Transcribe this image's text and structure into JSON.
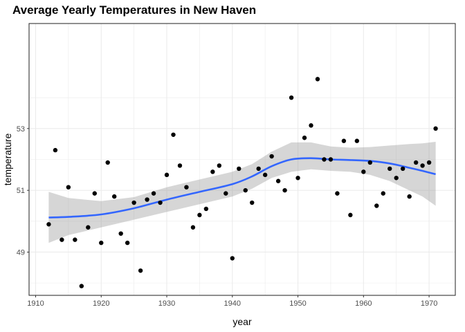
{
  "chart_data": {
    "type": "scatter",
    "title": "Average Yearly Temperatures in New Haven",
    "xlabel": "year",
    "ylabel": "temperature",
    "xlim": [
      1909,
      1974
    ],
    "ylim": [
      47.6,
      56.4
    ],
    "x_ticks": [
      1910,
      1920,
      1930,
      1940,
      1950,
      1960,
      1970
    ],
    "y_ticks": [
      49,
      51,
      53
    ],
    "grid": true,
    "points": [
      {
        "x": 1912,
        "y": 49.9
      },
      {
        "x": 1913,
        "y": 52.3
      },
      {
        "x": 1914,
        "y": 49.4
      },
      {
        "x": 1915,
        "y": 51.1
      },
      {
        "x": 1916,
        "y": 49.4
      },
      {
        "x": 1917,
        "y": 47.9
      },
      {
        "x": 1918,
        "y": 49.8
      },
      {
        "x": 1919,
        "y": 50.9
      },
      {
        "x": 1920,
        "y": 49.3
      },
      {
        "x": 1921,
        "y": 51.9
      },
      {
        "x": 1922,
        "y": 50.8
      },
      {
        "x": 1923,
        "y": 49.6
      },
      {
        "x": 1924,
        "y": 49.3
      },
      {
        "x": 1925,
        "y": 50.6
      },
      {
        "x": 1926,
        "y": 48.4
      },
      {
        "x": 1927,
        "y": 50.7
      },
      {
        "x": 1928,
        "y": 50.9
      },
      {
        "x": 1929,
        "y": 50.6
      },
      {
        "x": 1930,
        "y": 51.5
      },
      {
        "x": 1931,
        "y": 52.8
      },
      {
        "x": 1932,
        "y": 51.8
      },
      {
        "x": 1933,
        "y": 51.1
      },
      {
        "x": 1934,
        "y": 49.8
      },
      {
        "x": 1935,
        "y": 50.2
      },
      {
        "x": 1936,
        "y": 50.4
      },
      {
        "x": 1937,
        "y": 51.6
      },
      {
        "x": 1938,
        "y": 51.8
      },
      {
        "x": 1939,
        "y": 50.9
      },
      {
        "x": 1940,
        "y": 48.8
      },
      {
        "x": 1941,
        "y": 51.7
      },
      {
        "x": 1942,
        "y": 51.0
      },
      {
        "x": 1943,
        "y": 50.6
      },
      {
        "x": 1944,
        "y": 51.7
      },
      {
        "x": 1945,
        "y": 51.5
      },
      {
        "x": 1946,
        "y": 52.1
      },
      {
        "x": 1947,
        "y": 51.3
      },
      {
        "x": 1948,
        "y": 51.0
      },
      {
        "x": 1949,
        "y": 54.0
      },
      {
        "x": 1950,
        "y": 51.4
      },
      {
        "x": 1951,
        "y": 52.7
      },
      {
        "x": 1952,
        "y": 53.1
      },
      {
        "x": 1953,
        "y": 54.6
      },
      {
        "x": 1954,
        "y": 52.0
      },
      {
        "x": 1955,
        "y": 52.0
      },
      {
        "x": 1956,
        "y": 50.9
      },
      {
        "x": 1957,
        "y": 52.6
      },
      {
        "x": 1958,
        "y": 50.2
      },
      {
        "x": 1959,
        "y": 52.6
      },
      {
        "x": 1960,
        "y": 51.6
      },
      {
        "x": 1961,
        "y": 51.9
      },
      {
        "x": 1962,
        "y": 50.5
      },
      {
        "x": 1963,
        "y": 50.9
      },
      {
        "x": 1964,
        "y": 51.7
      },
      {
        "x": 1965,
        "y": 51.4
      },
      {
        "x": 1966,
        "y": 51.7
      },
      {
        "x": 1967,
        "y": 50.8
      },
      {
        "x": 1968,
        "y": 51.9
      },
      {
        "x": 1969,
        "y": 51.8
      },
      {
        "x": 1970,
        "y": 51.9
      },
      {
        "x": 1971,
        "y": 53.0
      }
    ],
    "smooth": {
      "method": "loess",
      "x": [
        1912,
        1915,
        1920,
        1925,
        1930,
        1935,
        1940,
        1943,
        1946,
        1949,
        1952,
        1955,
        1958,
        1961,
        1964,
        1967,
        1969,
        1971
      ],
      "y": [
        50.12,
        50.14,
        50.22,
        50.42,
        50.7,
        50.95,
        51.2,
        51.45,
        51.78,
        52.0,
        52.04,
        52.0,
        51.98,
        51.95,
        51.87,
        51.73,
        51.63,
        51.52
      ],
      "lower": [
        49.3,
        49.55,
        49.8,
        50.05,
        50.3,
        50.55,
        50.8,
        51.05,
        51.4,
        51.6,
        51.68,
        51.63,
        51.6,
        51.5,
        51.3,
        51.0,
        50.8,
        50.5
      ],
      "upper": [
        50.95,
        50.75,
        50.65,
        50.78,
        51.1,
        51.35,
        51.6,
        51.85,
        52.25,
        52.55,
        52.55,
        52.42,
        52.38,
        52.4,
        52.45,
        52.5,
        52.52,
        52.57
      ],
      "line_color": "#3366FF",
      "band_color": "#999999"
    },
    "point_color": "#000000",
    "grid_color": "#ebebeb",
    "panel_border_color": "#333333"
  }
}
